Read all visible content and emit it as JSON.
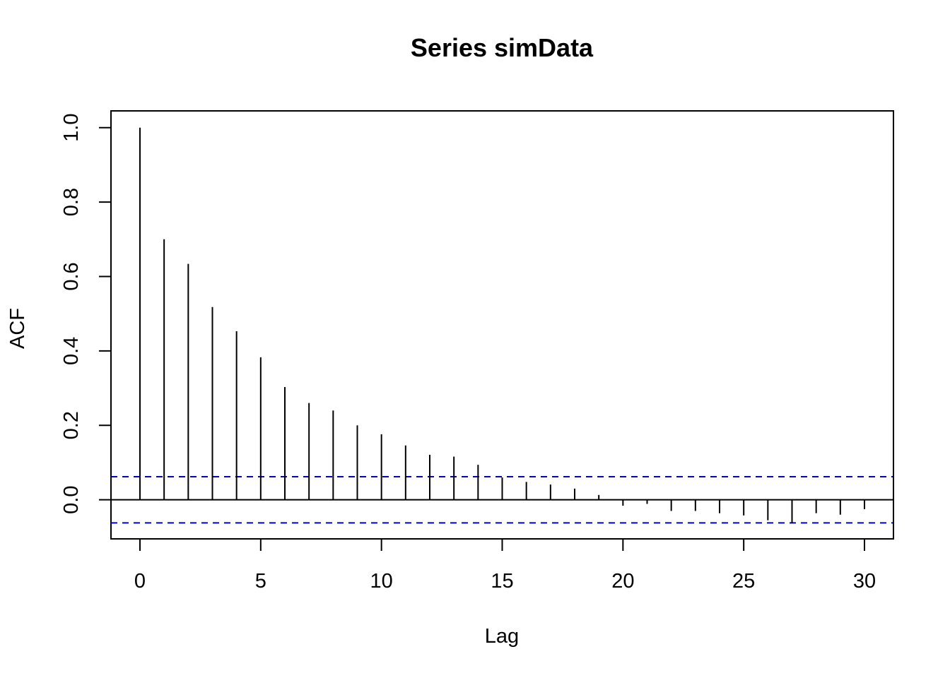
{
  "chart_data": {
    "type": "bar",
    "title": "Series  simData",
    "xlabel": "Lag",
    "ylabel": "ACF",
    "xlim": [
      -1.2,
      31.2
    ],
    "ylim": [
      -0.105,
      1.045
    ],
    "x_ticks": [
      0,
      5,
      10,
      15,
      20,
      25,
      30
    ],
    "y_ticks": [
      0.0,
      0.2,
      0.4,
      0.6,
      0.8,
      1.0
    ],
    "y_tick_labels": [
      "0.0",
      "0.2",
      "0.4",
      "0.6",
      "0.8",
      "1.0"
    ],
    "x": [
      0,
      1,
      2,
      3,
      4,
      5,
      6,
      7,
      8,
      9,
      10,
      11,
      12,
      13,
      14,
      15,
      16,
      17,
      18,
      19,
      20,
      21,
      22,
      23,
      24,
      25,
      26,
      27,
      28,
      29,
      30
    ],
    "values": [
      1.0,
      0.7,
      0.634,
      0.518,
      0.453,
      0.383,
      0.303,
      0.26,
      0.24,
      0.2,
      0.176,
      0.146,
      0.121,
      0.116,
      0.094,
      0.06,
      0.048,
      0.041,
      0.03,
      0.013,
      -0.016,
      -0.011,
      -0.03,
      -0.03,
      -0.036,
      -0.042,
      -0.055,
      -0.063,
      -0.036,
      -0.04,
      -0.025
    ],
    "confidence_bounds": [
      0.062,
      -0.062
    ],
    "grid": false,
    "legend": "none",
    "colors": {
      "bars": "#000000",
      "bounds": "#0000cc",
      "frame": "#000000"
    }
  }
}
